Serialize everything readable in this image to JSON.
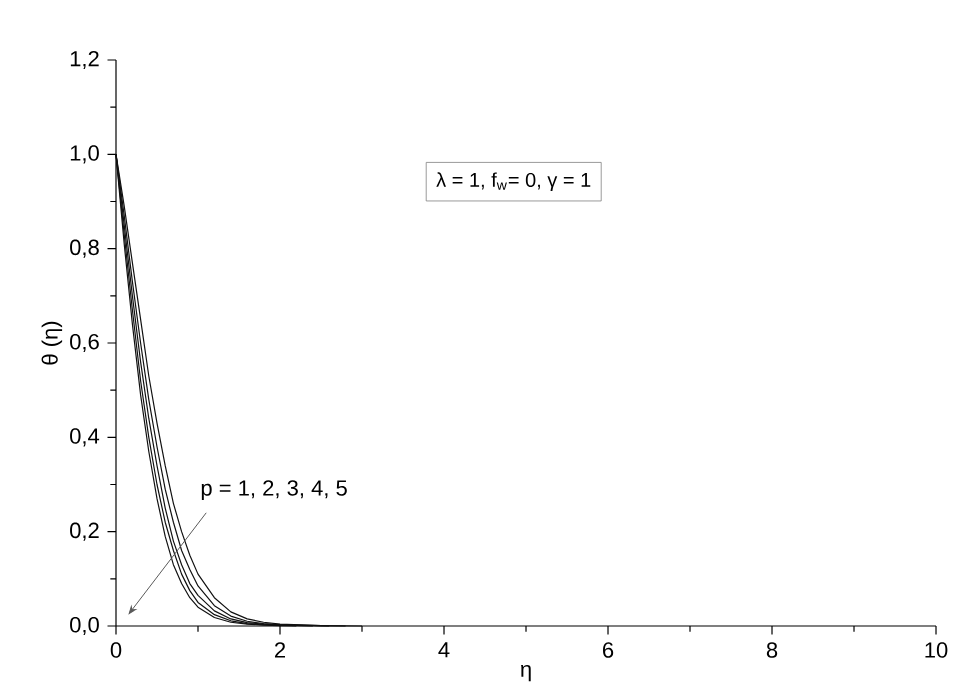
{
  "chart_data": {
    "type": "line",
    "xlabel": "η",
    "ylabel": "θ (η)",
    "xlim": [
      0,
      10
    ],
    "ylim": [
      0,
      1.2
    ],
    "xticks": [
      0,
      2,
      4,
      6,
      8,
      10
    ],
    "yticks": [
      {
        "value": 0,
        "label": "0,0"
      },
      {
        "value": 0.2,
        "label": "0,2"
      },
      {
        "value": 0.4,
        "label": "0,4"
      },
      {
        "value": 0.6,
        "label": "0,6"
      },
      {
        "value": 0.8,
        "label": "0,8"
      },
      {
        "value": 1.0,
        "label": "1,0"
      },
      {
        "value": 1.2,
        "label": "1,2"
      }
    ],
    "marker": "none",
    "line_style": "solid",
    "series": [
      {
        "color": "#111111",
        "x": [
          0,
          0.1,
          0.2,
          0.3,
          0.4,
          0.5,
          0.6,
          0.7,
          0.8,
          0.9,
          1.0,
          1.2,
          1.4,
          1.6,
          1.8,
          2.0,
          2.2
        ],
        "values": [
          1.0,
          0.81,
          0.64,
          0.49,
          0.37,
          0.27,
          0.19,
          0.13,
          0.09,
          0.06,
          0.04,
          0.018,
          0.008,
          0.004,
          0.002,
          0.001,
          0
        ]
      },
      {
        "color": "#111111",
        "x": [
          0,
          0.1,
          0.2,
          0.3,
          0.4,
          0.5,
          0.6,
          0.7,
          0.8,
          0.9,
          1.0,
          1.2,
          1.4,
          1.6,
          1.8,
          2.0,
          2.4
        ],
        "values": [
          1.0,
          0.83,
          0.67,
          0.52,
          0.4,
          0.3,
          0.22,
          0.16,
          0.11,
          0.075,
          0.05,
          0.024,
          0.011,
          0.005,
          0.003,
          0.002,
          0
        ]
      },
      {
        "color": "#111111",
        "x": [
          0,
          0.1,
          0.2,
          0.3,
          0.4,
          0.5,
          0.6,
          0.7,
          0.8,
          0.9,
          1.0,
          1.2,
          1.4,
          1.6,
          1.8,
          2.0,
          2.6
        ],
        "values": [
          1.0,
          0.85,
          0.7,
          0.56,
          0.44,
          0.34,
          0.25,
          0.18,
          0.13,
          0.09,
          0.065,
          0.032,
          0.015,
          0.007,
          0.004,
          0.002,
          0
        ]
      },
      {
        "color": "#111111",
        "x": [
          0,
          0.1,
          0.2,
          0.3,
          0.4,
          0.5,
          0.6,
          0.7,
          0.8,
          0.9,
          1.0,
          1.2,
          1.4,
          1.6,
          1.8,
          2.0,
          2.5,
          2.8
        ],
        "values": [
          1.0,
          0.87,
          0.73,
          0.6,
          0.48,
          0.38,
          0.29,
          0.22,
          0.16,
          0.12,
          0.085,
          0.043,
          0.021,
          0.01,
          0.005,
          0.003,
          0.001,
          0
        ]
      },
      {
        "color": "#111111",
        "x": [
          0,
          0.1,
          0.2,
          0.3,
          0.4,
          0.5,
          0.6,
          0.7,
          0.8,
          0.9,
          1.0,
          1.2,
          1.4,
          1.6,
          1.8,
          2.0,
          2.5,
          3.0
        ],
        "values": [
          1.0,
          0.89,
          0.77,
          0.65,
          0.53,
          0.43,
          0.34,
          0.26,
          0.2,
          0.15,
          0.11,
          0.06,
          0.03,
          0.015,
          0.008,
          0.004,
          0.001,
          0
        ]
      }
    ],
    "annotations": [
      "λ = 1,  f$_{w}$= 0,  γ = 1",
      "p = 1, 2, 3, 4, 5"
    ]
  }
}
